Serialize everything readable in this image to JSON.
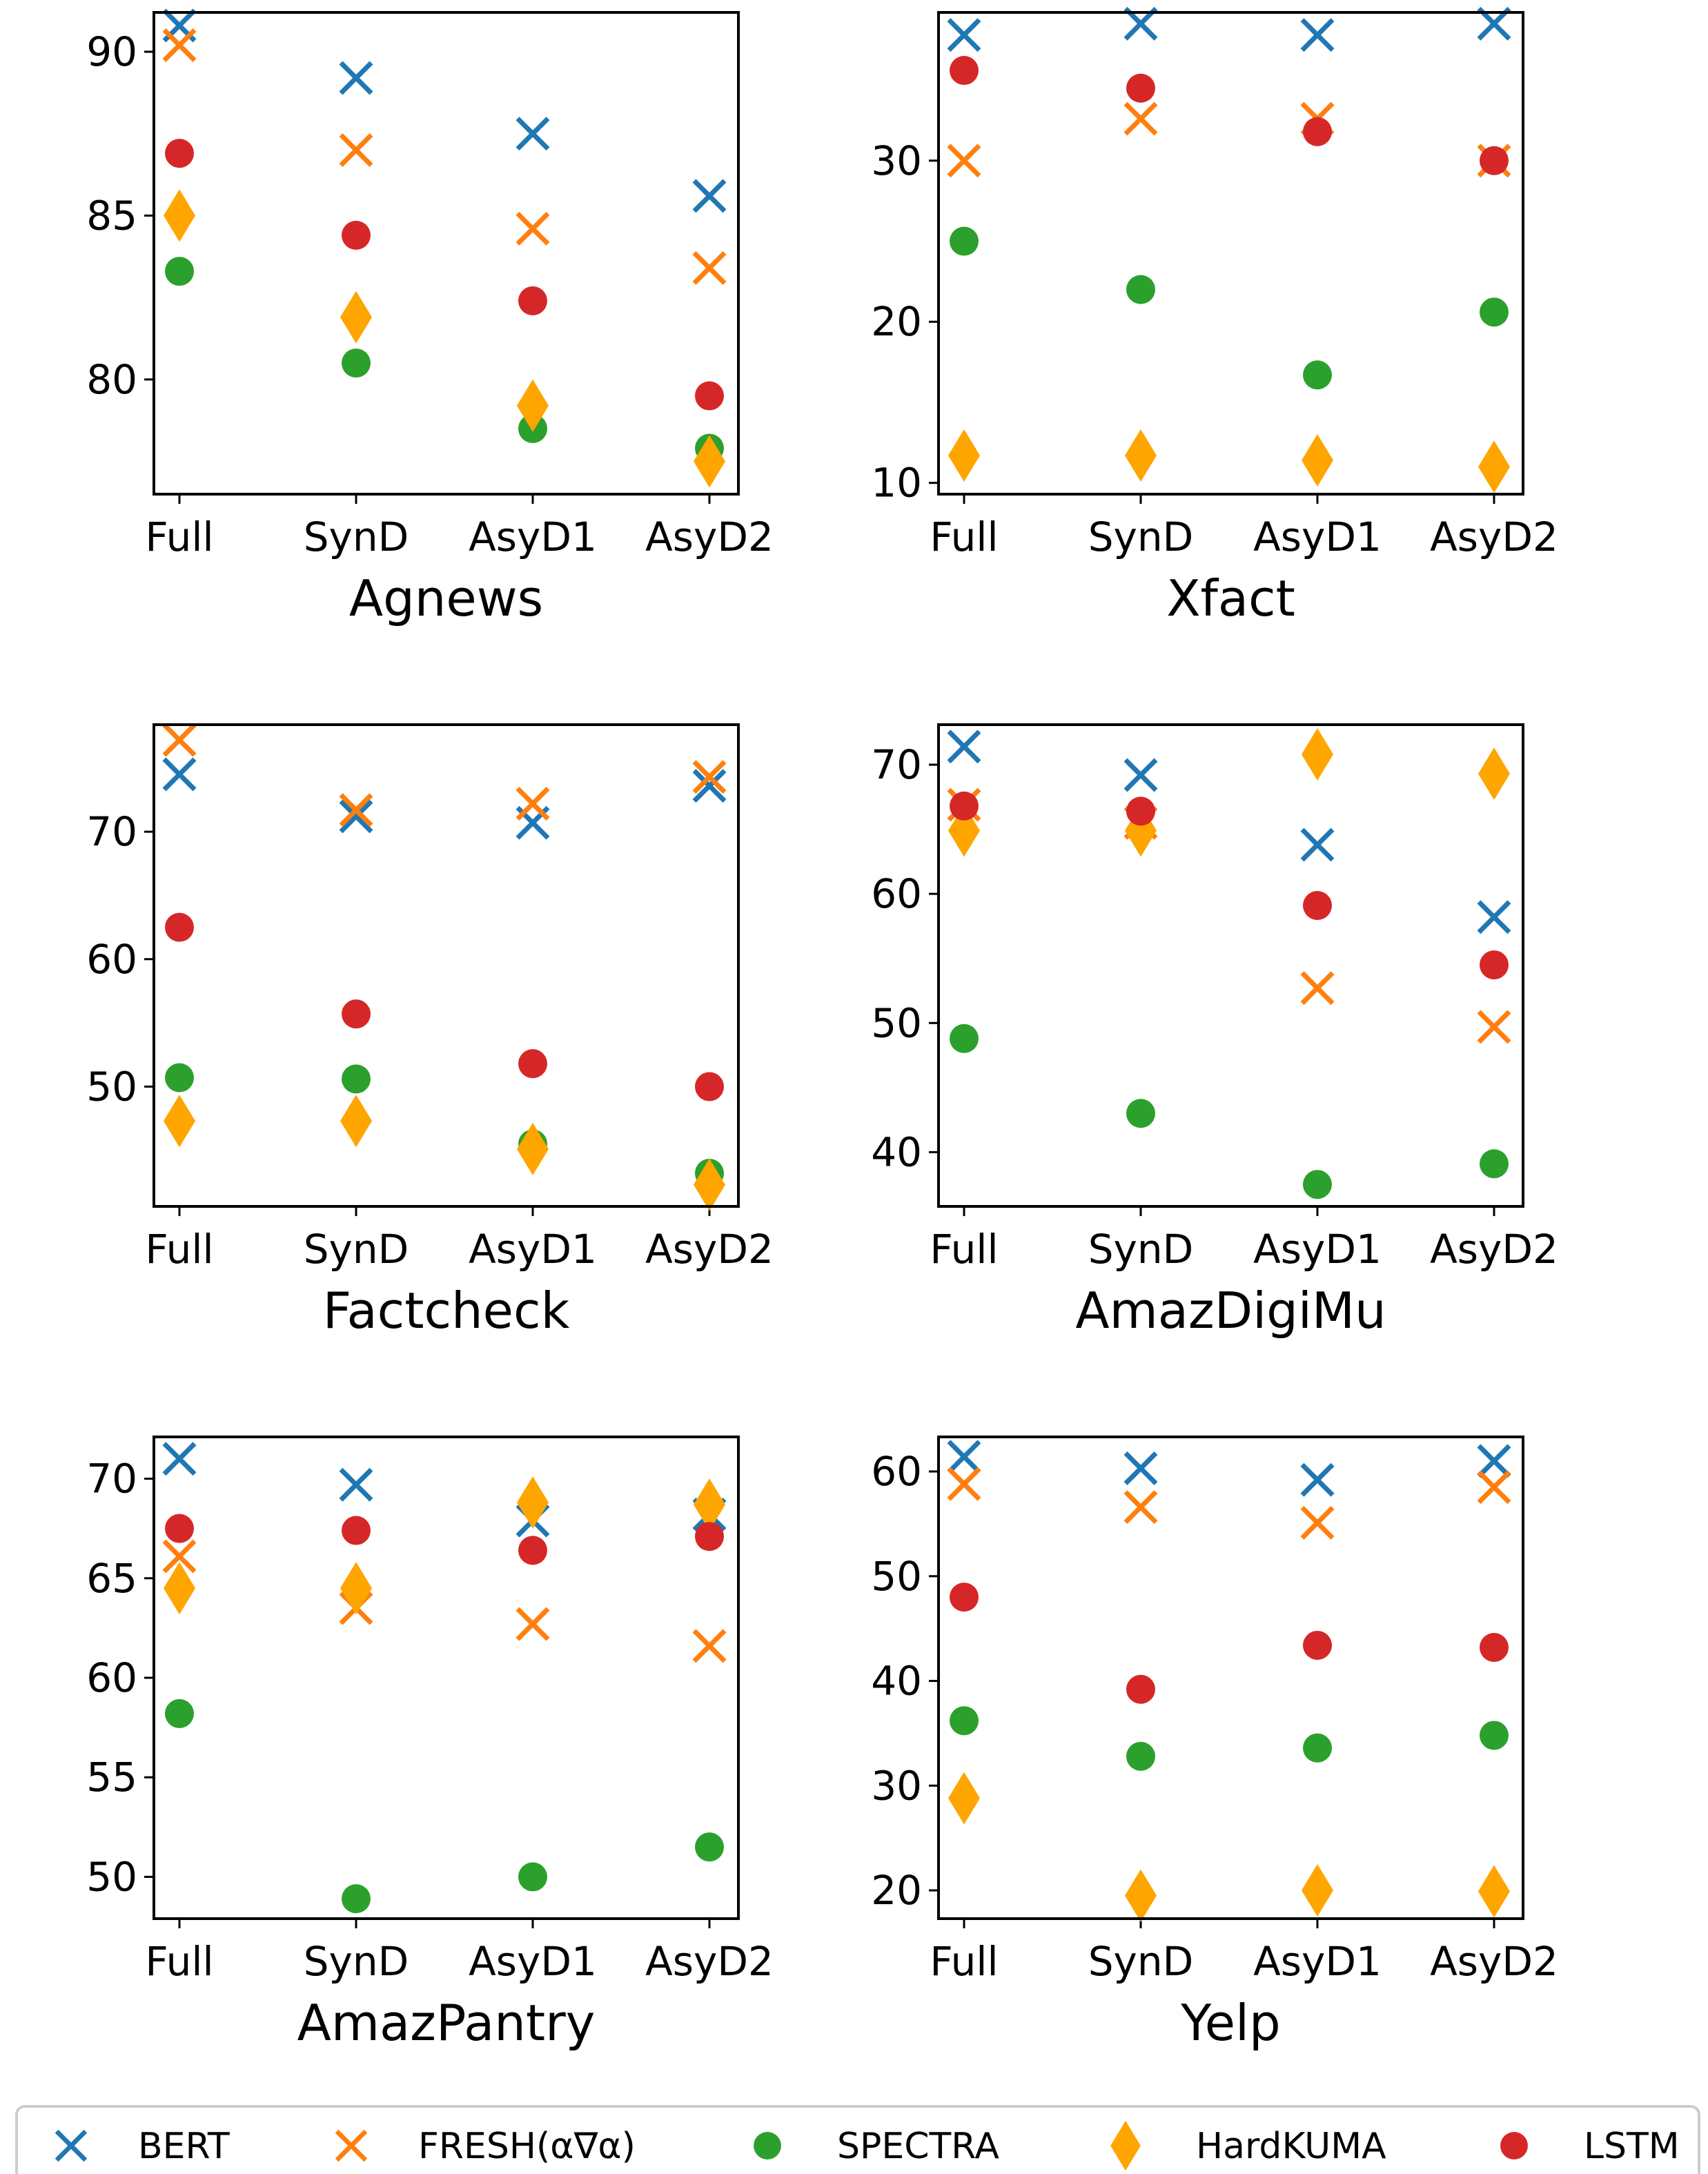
{
  "colors": {
    "BERT": "#1f77b4",
    "FRESH": "#ff7f0e",
    "SPECTRA": "#2ca02c",
    "HardKUMA": "#ffa500",
    "LSTM": "#d62728"
  },
  "legend": [
    {
      "key": "BERT",
      "label": "BERT",
      "marker": "x"
    },
    {
      "key": "FRESH",
      "label": "FRESH(α∇α)",
      "marker": "x"
    },
    {
      "key": "SPECTRA",
      "label": "SPECTRA",
      "marker": "circle"
    },
    {
      "key": "HardKUMA",
      "label": "HardKUMA",
      "marker": "diamond"
    },
    {
      "key": "LSTM",
      "label": "LSTM",
      "marker": "circle"
    }
  ],
  "chart_data": [
    {
      "type": "scatter",
      "title": "Agnews",
      "categories": [
        "Full",
        "SynD",
        "AsyD1",
        "AsyD2"
      ],
      "ylim": [
        76.5,
        91.2
      ],
      "yticks": [
        80,
        85,
        90
      ],
      "series": [
        {
          "key": "BERT",
          "name": "BERT",
          "values": [
            90.8,
            89.2,
            87.5,
            85.6
          ]
        },
        {
          "key": "FRESH",
          "name": "FRESH(α∇α)",
          "values": [
            90.2,
            87.0,
            84.6,
            83.4
          ]
        },
        {
          "key": "SPECTRA",
          "name": "SPECTRA",
          "values": [
            83.3,
            80.5,
            78.5,
            77.9
          ]
        },
        {
          "key": "HardKUMA",
          "name": "HardKUMA",
          "values": [
            85.0,
            81.9,
            79.2,
            77.5
          ]
        },
        {
          "key": "LSTM",
          "name": "LSTM",
          "values": [
            86.9,
            84.4,
            82.4,
            79.5
          ]
        }
      ]
    },
    {
      "type": "scatter",
      "title": "Xfact",
      "categories": [
        "Full",
        "SynD",
        "AsyD1",
        "AsyD2"
      ],
      "ylim": [
        9.3,
        39.2
      ],
      "yticks": [
        10,
        20,
        30
      ],
      "series": [
        {
          "key": "BERT",
          "name": "BERT",
          "values": [
            37.8,
            38.5,
            37.8,
            38.5
          ]
        },
        {
          "key": "FRESH",
          "name": "FRESH(α∇α)",
          "values": [
            30.0,
            32.6,
            32.6,
            30.0
          ]
        },
        {
          "key": "SPECTRA",
          "name": "SPECTRA",
          "values": [
            25.0,
            22.0,
            16.7,
            20.6
          ]
        },
        {
          "key": "HardKUMA",
          "name": "HardKUMA",
          "values": [
            11.7,
            11.7,
            11.4,
            11.0
          ]
        },
        {
          "key": "LSTM",
          "name": "LSTM",
          "values": [
            35.6,
            34.5,
            31.8,
            30.0
          ]
        }
      ]
    },
    {
      "type": "scatter",
      "title": "Factcheck",
      "categories": [
        "Full",
        "SynD",
        "AsyD1",
        "AsyD2"
      ],
      "ylim": [
        40.6,
        78.4
      ],
      "yticks": [
        50,
        60,
        70
      ],
      "series": [
        {
          "key": "BERT",
          "name": "BERT",
          "values": [
            74.5,
            71.2,
            70.7,
            73.6
          ]
        },
        {
          "key": "FRESH",
          "name": "FRESH(α∇α)",
          "values": [
            77.2,
            71.7,
            72.2,
            74.3
          ]
        },
        {
          "key": "SPECTRA",
          "name": "SPECTRA",
          "values": [
            50.7,
            50.6,
            45.5,
            43.2
          ]
        },
        {
          "key": "HardKUMA",
          "name": "HardKUMA",
          "values": [
            47.3,
            47.3,
            45.1,
            42.3
          ]
        },
        {
          "key": "LSTM",
          "name": "LSTM",
          "values": [
            62.5,
            55.7,
            51.8,
            50.0
          ]
        }
      ]
    },
    {
      "type": "scatter",
      "title": "AmazDigiMu",
      "categories": [
        "Full",
        "SynD",
        "AsyD1",
        "AsyD2"
      ],
      "ylim": [
        35.8,
        73.1
      ],
      "yticks": [
        40,
        50,
        60,
        70
      ],
      "series": [
        {
          "key": "BERT",
          "name": "BERT",
          "values": [
            71.4,
            69.2,
            63.8,
            58.2
          ]
        },
        {
          "key": "FRESH",
          "name": "FRESH(α∇α)",
          "values": [
            66.9,
            65.5,
            52.7,
            49.7
          ]
        },
        {
          "key": "SPECTRA",
          "name": "SPECTRA",
          "values": [
            48.8,
            43.0,
            37.5,
            39.1
          ]
        },
        {
          "key": "HardKUMA",
          "name": "HardKUMA",
          "values": [
            64.9,
            64.9,
            70.8,
            69.3
          ]
        },
        {
          "key": "LSTM",
          "name": "LSTM",
          "values": [
            66.8,
            66.4,
            59.1,
            54.5
          ]
        }
      ]
    },
    {
      "type": "scatter",
      "title": "AmazPantry",
      "categories": [
        "Full",
        "SynD",
        "AsyD1",
        "AsyD2"
      ],
      "ylim": [
        47.9,
        72.1
      ],
      "yticks": [
        50,
        55,
        60,
        65,
        70
      ],
      "series": [
        {
          "key": "BERT",
          "name": "BERT",
          "values": [
            71.0,
            69.7,
            67.9,
            68.2
          ]
        },
        {
          "key": "FRESH",
          "name": "FRESH(α∇α)",
          "values": [
            66.1,
            63.5,
            62.7,
            61.6
          ]
        },
        {
          "key": "SPECTRA",
          "name": "SPECTRA",
          "values": [
            58.2,
            48.9,
            50.0,
            51.5
          ]
        },
        {
          "key": "HardKUMA",
          "name": "HardKUMA",
          "values": [
            64.5,
            64.5,
            68.8,
            68.7
          ]
        },
        {
          "key": "LSTM",
          "name": "LSTM",
          "values": [
            67.5,
            67.4,
            66.4,
            67.1
          ]
        }
      ]
    },
    {
      "type": "scatter",
      "title": "Yelp",
      "categories": [
        "Full",
        "SynD",
        "AsyD1",
        "AsyD2"
      ],
      "ylim": [
        17.3,
        63.3
      ],
      "yticks": [
        20,
        30,
        40,
        50,
        60
      ],
      "series": [
        {
          "key": "BERT",
          "name": "BERT",
          "values": [
            61.4,
            60.3,
            59.2,
            61.0
          ]
        },
        {
          "key": "FRESH",
          "name": "FRESH(α∇α)",
          "values": [
            58.8,
            56.6,
            55.1,
            58.5
          ]
        },
        {
          "key": "SPECTRA",
          "name": "SPECTRA",
          "values": [
            36.2,
            32.8,
            33.6,
            34.8
          ]
        },
        {
          "key": "HardKUMA",
          "name": "HardKUMA",
          "values": [
            28.8,
            19.5,
            20.0,
            19.9
          ]
        },
        {
          "key": "LSTM",
          "name": "LSTM",
          "values": [
            48.0,
            39.2,
            43.4,
            43.2
          ]
        }
      ]
    }
  ]
}
